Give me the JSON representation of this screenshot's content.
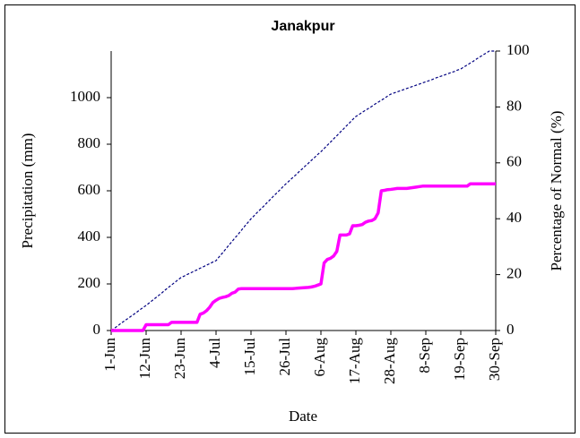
{
  "chart_data": {
    "type": "line",
    "title": "Janakpur",
    "xlabel": "Date",
    "ylabel": "Precipitation (mm)",
    "y2label": "Percentage of Normal (%)",
    "x": [
      0,
      1,
      2,
      3,
      4,
      5,
      6,
      7,
      8,
      9,
      10,
      11,
      12,
      13,
      14,
      15,
      16,
      17,
      18,
      19,
      20,
      21,
      22,
      23,
      24,
      25,
      26,
      27,
      28,
      29,
      30,
      31,
      32,
      33,
      34,
      35,
      36,
      37,
      38,
      39,
      40,
      41,
      42,
      43,
      44,
      45,
      46,
      47,
      48,
      49,
      50,
      51,
      52,
      53,
      54,
      55,
      56,
      57,
      58,
      59,
      60,
      61,
      62,
      63,
      64,
      65,
      66,
      67,
      68,
      69,
      70,
      71,
      72,
      73,
      74,
      75,
      76,
      77,
      78,
      79,
      80,
      81,
      82,
      83,
      84,
      85,
      86,
      87,
      88,
      89,
      90,
      91,
      92,
      93,
      94,
      95,
      96,
      97,
      98,
      99,
      100,
      101,
      102,
      103,
      104,
      105,
      106,
      107,
      108,
      109,
      110,
      111,
      112,
      113,
      114,
      115,
      116,
      117,
      118,
      119,
      120,
      121
    ],
    "xlim": [
      0,
      121
    ],
    "xticks": [
      {
        "value": 0,
        "label": "1-Jun"
      },
      {
        "value": 11,
        "label": "12-Jun"
      },
      {
        "value": 22,
        "label": "23-Jun"
      },
      {
        "value": 33,
        "label": "4-Jul"
      },
      {
        "value": 44,
        "label": "15-Jul"
      },
      {
        "value": 55,
        "label": "26-Jul"
      },
      {
        "value": 66,
        "label": "6-Aug"
      },
      {
        "value": 77,
        "label": "17-Aug"
      },
      {
        "value": 88,
        "label": "28-Aug"
      },
      {
        "value": 99,
        "label": "8-Sep"
      },
      {
        "value": 110,
        "label": "19-Sep"
      },
      {
        "value": 121,
        "label": "30-Sep"
      }
    ],
    "ylim": [
      0,
      1200
    ],
    "yticks": [
      0,
      200,
      400,
      600,
      800,
      1000
    ],
    "y2lim": [
      0,
      100
    ],
    "y2ticks": [
      0,
      20,
      40,
      60,
      80,
      100
    ],
    "series": [
      {
        "color": "#ff00ff",
        "axis": "y",
        "values": [
          0,
          0,
          0,
          0,
          0,
          0,
          0,
          0,
          0,
          0,
          0,
          25,
          25,
          25,
          25,
          25,
          25,
          25,
          25,
          35,
          35,
          35,
          35,
          35,
          35,
          35,
          35,
          35,
          70,
          75,
          85,
          100,
          120,
          130,
          138,
          142,
          145,
          150,
          160,
          165,
          178,
          180,
          180,
          180,
          180,
          180,
          180,
          180,
          180,
          180,
          180,
          180,
          180,
          180,
          180,
          180,
          180,
          180,
          181,
          182,
          183,
          184,
          185,
          187,
          190,
          195,
          200,
          290,
          305,
          310,
          320,
          340,
          410,
          410,
          410,
          415,
          450,
          450,
          452,
          455,
          465,
          470,
          472,
          480,
          505,
          600,
          602,
          605,
          606,
          608,
          610,
          610,
          610,
          610,
          612,
          614,
          616,
          618,
          620,
          620,
          620,
          620,
          620,
          620,
          620,
          620,
          620,
          620,
          620,
          620,
          620,
          620,
          620,
          630,
          630,
          630,
          630,
          630,
          630,
          630,
          630,
          630
        ]
      },
      {
        "color": "#000080",
        "axis": "y2",
        "dashed": true,
        "values": [
          0,
          0.8,
          1.6,
          2.5,
          3.3,
          4.1,
          4.9,
          5.7,
          6.5,
          7.4,
          8.2,
          9,
          9.9,
          10.8,
          11.7,
          12.6,
          13.5,
          14.5,
          15.4,
          16.3,
          17.2,
          18.1,
          19,
          19.5,
          20.1,
          20.6,
          21.2,
          21.7,
          22.3,
          22.8,
          23.4,
          23.9,
          24.5,
          25,
          26.4,
          27.7,
          29.1,
          30.5,
          31.8,
          33.2,
          34.5,
          35.9,
          37.3,
          38.6,
          40,
          41.1,
          42.3,
          43.4,
          44.5,
          45.7,
          46.8,
          48,
          49.1,
          50.2,
          51.4,
          52.5,
          53.5,
          54.6,
          55.6,
          56.7,
          57.7,
          58.8,
          59.8,
          60.9,
          61.9,
          63,
          64,
          65.1,
          66.3,
          67.4,
          68.6,
          69.7,
          70.9,
          72,
          73.2,
          74.3,
          75.5,
          76.6,
          77.3,
          78.1,
          78.8,
          79.5,
          80.2,
          81,
          81.7,
          82.4,
          83.1,
          83.9,
          84.6,
          85,
          85.4,
          85.8,
          86.2,
          86.6,
          87,
          87.4,
          87.8,
          88.2,
          88.6,
          89,
          89.4,
          89.8,
          90.3,
          90.7,
          91.1,
          91.5,
          91.9,
          92.3,
          92.7,
          93.2,
          93.6,
          94.3,
          95,
          95.7,
          96.4,
          97.2,
          97.9,
          98.6,
          99.3,
          100,
          100,
          100
        ]
      }
    ]
  }
}
